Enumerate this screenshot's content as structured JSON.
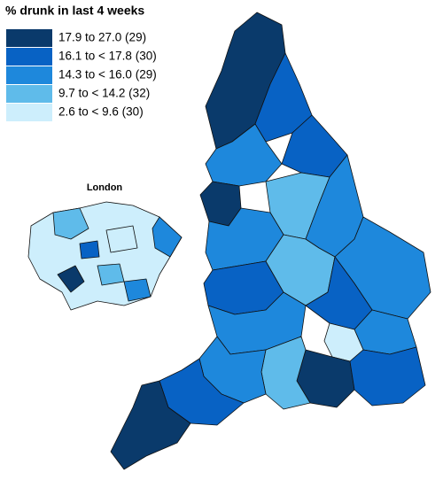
{
  "title": "% drunk in last 4 weeks",
  "legend": [
    {
      "label": "17.9 to 27.0 (29)",
      "color": "#0a3a6b"
    },
    {
      "label": "16.1 to < 17.8 (30)",
      "color": "#0862c4"
    },
    {
      "label": "14.3 to < 16.0 (29)",
      "color": "#1e88dc"
    },
    {
      "label": "9.7 to < 14.2 (32)",
      "color": "#5fbbea"
    },
    {
      "label": "2.6 to < 9.6 (30)",
      "color": "#cdeefc"
    }
  ],
  "inset_label": "London"
}
